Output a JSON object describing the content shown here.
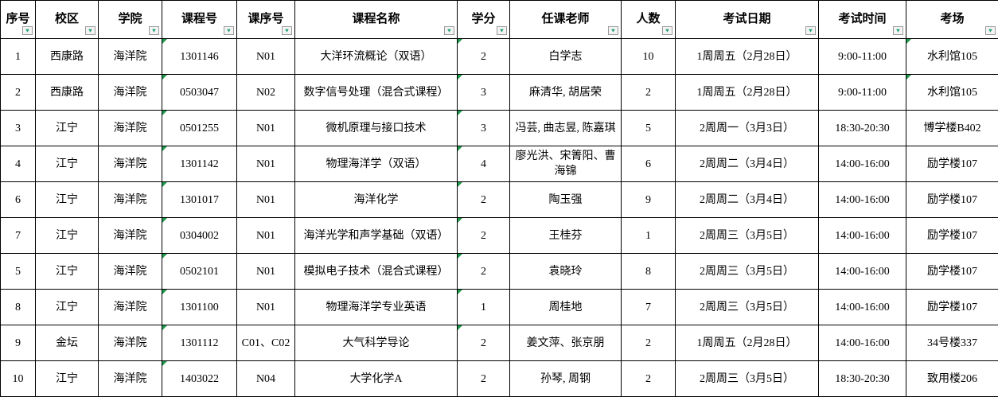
{
  "table": {
    "headers": [
      "序号",
      "校区",
      "学院",
      "课程号",
      "课序号",
      "课程名称",
      "学分",
      "任课老师",
      "人数",
      "考试日期",
      "考试时间",
      "考场"
    ],
    "filter_glyph": "▼",
    "rows": [
      {
        "cells": [
          "1",
          "西康路",
          "海洋院",
          "1301146",
          "N01",
          "大洋环流概论（双语）",
          "2",
          "白学志",
          "10",
          "1周周五（2月28日）",
          "9:00-11:00",
          "水利馆105"
        ],
        "corner_marks": [
          3,
          6,
          11
        ]
      },
      {
        "cells": [
          "2",
          "西康路",
          "海洋院",
          "0503047",
          "N02",
          "数字信号处理（混合式课程）",
          "3",
          "麻清华, 胡居荣",
          "2",
          "1周周五（2月28日）",
          "9:00-11:00",
          "水利馆105"
        ],
        "corner_marks": [
          3,
          6,
          11
        ]
      },
      {
        "cells": [
          "3",
          "江宁",
          "海洋院",
          "0501255",
          "N01",
          "微机原理与接口技术",
          "3",
          "冯芸, 曲志昱, 陈嘉琪",
          "5",
          "2周周一（3月3日）",
          "18:30-20:30",
          "博学楼B402"
        ],
        "corner_marks": [
          3,
          6
        ]
      },
      {
        "cells": [
          "4",
          "江宁",
          "海洋院",
          "1301142",
          "N01",
          "物理海洋学（双语）",
          "4",
          "廖光洪、宋箐阳、曹海锦",
          "6",
          "2周周二（3月4日）",
          "14:00-16:00",
          "励学楼107"
        ],
        "corner_marks": [
          3,
          6
        ]
      },
      {
        "cells": [
          "6",
          "江宁",
          "海洋院",
          "1301017",
          "N01",
          "海洋化学",
          "2",
          "陶玉强",
          "9",
          "2周周二（3月4日）",
          "14:00-16:00",
          "励学楼107"
        ],
        "corner_marks": [
          3,
          6
        ]
      },
      {
        "cells": [
          "7",
          "江宁",
          "海洋院",
          "0304002",
          "N01",
          "海洋光学和声学基础（双语）",
          "2",
          "王桂芬",
          "1",
          "2周周三（3月5日）",
          "14:00-16:00",
          "励学楼107"
        ],
        "corner_marks": [
          3,
          6
        ]
      },
      {
        "cells": [
          "5",
          "江宁",
          "海洋院",
          "0502101",
          "N01",
          "模拟电子技术（混合式课程）",
          "2",
          "袁晓玲",
          "8",
          "2周周三（3月5日）",
          "14:00-16:00",
          "励学楼107"
        ],
        "corner_marks": [
          3,
          6
        ]
      },
      {
        "cells": [
          "8",
          "江宁",
          "海洋院",
          "1301100",
          "N01",
          "物理海洋学专业英语",
          "1",
          "周桂地",
          "7",
          "2周周三（3月5日）",
          "14:00-16:00",
          "励学楼107"
        ],
        "corner_marks": [
          3,
          6
        ]
      },
      {
        "cells": [
          "9",
          "金坛",
          "海洋院",
          "1301112",
          "C01、C02",
          "大气科学导论",
          "2",
          "姜文萍、张京朋",
          "2",
          "1周周五（2月28日）",
          "14:00-16:00",
          "34号楼337"
        ],
        "corner_marks": [
          3,
          6
        ]
      },
      {
        "cells": [
          "10",
          "江宁",
          "海洋院",
          "1403022",
          "N04",
          "大学化学A",
          "2",
          "孙琴, 周钢",
          "2",
          "2周周三（3月5日）",
          "18:30-20:30",
          "致用楼206"
        ],
        "corner_marks": [
          3
        ]
      }
    ],
    "colors": {
      "border": "#000000",
      "corner_mark_green": "#1e9a4c",
      "filter_triangle_green": "#21a077",
      "filter_button_bg": "#f4f4f4",
      "filter_button_border": "#9a9a9a",
      "background": "#ffffff"
    }
  }
}
